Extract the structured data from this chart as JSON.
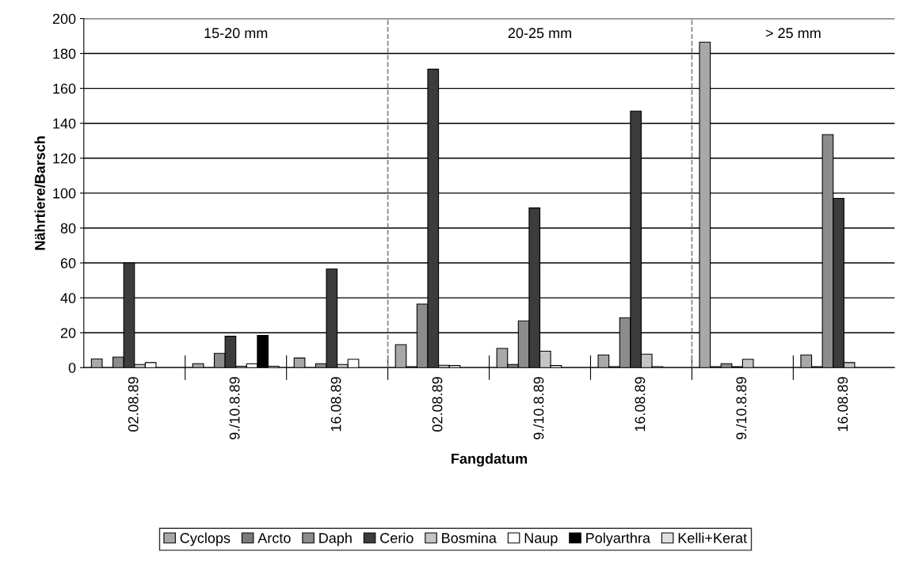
{
  "chart_data": {
    "type": "bar",
    "xlabel": "Fangdatum",
    "ylabel": "Nährtiere/Barsch",
    "categories": [
      "02.08.89",
      "9./10.8.89",
      "16.08.89",
      "02.08.89",
      "9./10.8.89",
      "16.08.89",
      "9./10.8.89",
      "16.08.89"
    ],
    "series": [
      {
        "name": "Cyclops",
        "color": "#a8a8a8",
        "values": [
          5,
          2.3,
          5.5,
          13.2,
          11,
          7.3,
          186.5,
          7.3
        ]
      },
      {
        "name": "Arcto",
        "color": "#7a7a7a",
        "values": [
          null,
          null,
          null,
          0.6,
          1.8,
          0.6,
          0.6,
          0.6
        ]
      },
      {
        "name": "Daph",
        "color": "#8c8c8c",
        "values": [
          6,
          8.2,
          2.3,
          36.4,
          26.8,
          28.6,
          2.3,
          133.5
        ]
      },
      {
        "name": "Cerio",
        "color": "#3c3c3c",
        "values": [
          60,
          18,
          56.5,
          171,
          91.5,
          147,
          0.6,
          97
        ]
      },
      {
        "name": "Bosmina",
        "color": "#c4c4c4",
        "values": [
          1.8,
          0.8,
          1.8,
          1.4,
          9.4,
          7.7,
          4.8,
          2.9
        ]
      },
      {
        "name": "Naup",
        "color": "#ffffff",
        "values": [
          2.9,
          2.2,
          4.8,
          1.2,
          1.2,
          0.6,
          null,
          null
        ]
      },
      {
        "name": "Polyarthra",
        "color": "#000000",
        "values": [
          null,
          18.5,
          null,
          null,
          null,
          null,
          null,
          null
        ]
      },
      {
        "name": "Kelli+Kerat",
        "color": "#e0e0e0",
        "values": [
          null,
          0.8,
          null,
          null,
          null,
          null,
          null,
          null
        ]
      }
    ],
    "ylim": [
      0,
      200
    ],
    "yticks": [
      0,
      20,
      40,
      60,
      80,
      100,
      120,
      140,
      160,
      180,
      200
    ],
    "grid": "y",
    "legend": "bottom",
    "annotations": [
      "15-20 mm",
      "20-25 mm",
      "> 25 mm"
    ]
  }
}
